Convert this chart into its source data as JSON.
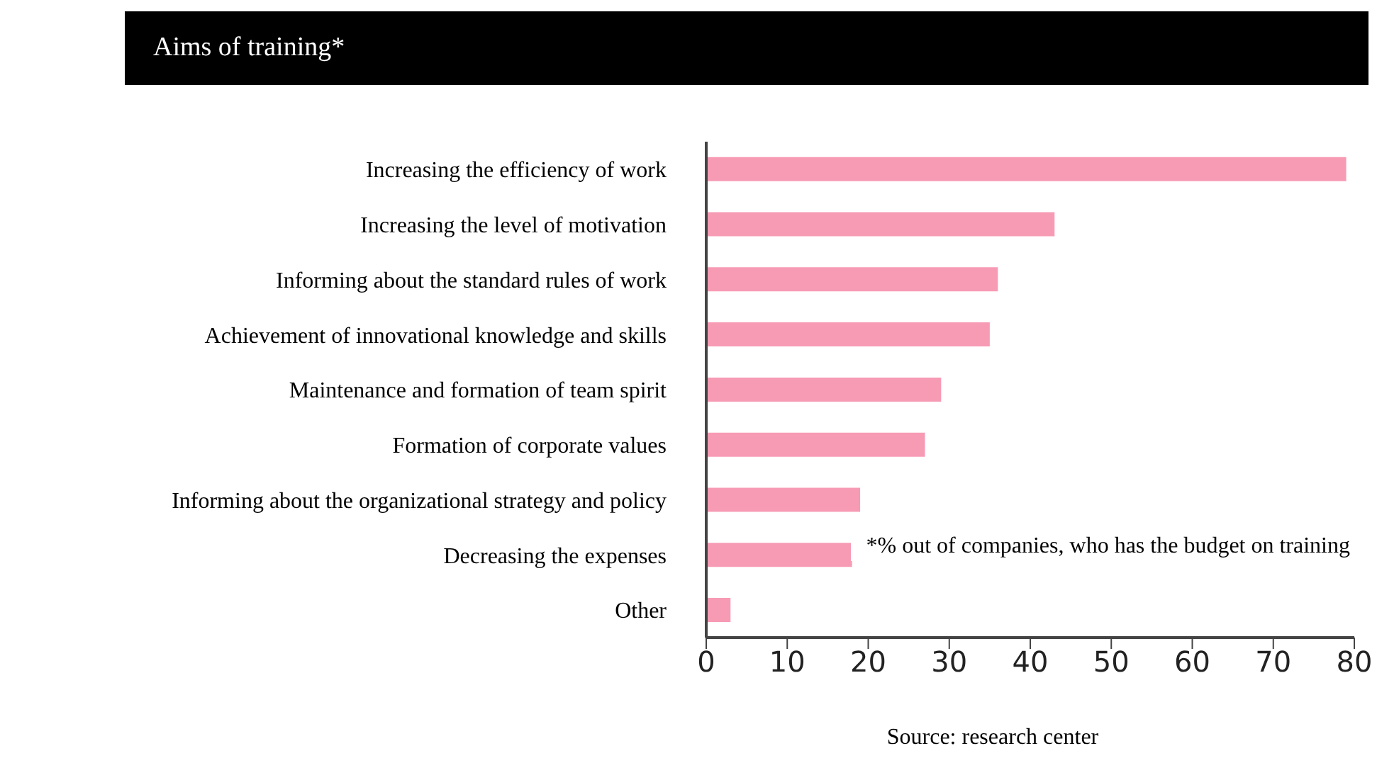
{
  "chart_data": {
    "type": "bar",
    "orientation": "horizontal",
    "title": "Aims of training*",
    "categories": [
      "Increasing the efficiency of work",
      "Increasing the level of motivation",
      "Informing about the standard rules of work",
      "Achievement of innovational knowledge and skills",
      "Maintenance and formation of team spirit",
      "Formation of corporate values",
      "Informing about the organizational strategy and policy",
      "Decreasing the expenses",
      "Other"
    ],
    "values": [
      79,
      43,
      36,
      35,
      29,
      27,
      19,
      18,
      3
    ],
    "color": "#f79bb5",
    "xlim": [
      0,
      80
    ],
    "xticks": [
      0,
      10,
      20,
      30,
      40,
      50,
      60,
      70,
      80
    ],
    "grid": false,
    "legend": false,
    "annotations": [
      "*% out of companies, who has the budget on training",
      "Source: research center"
    ]
  }
}
